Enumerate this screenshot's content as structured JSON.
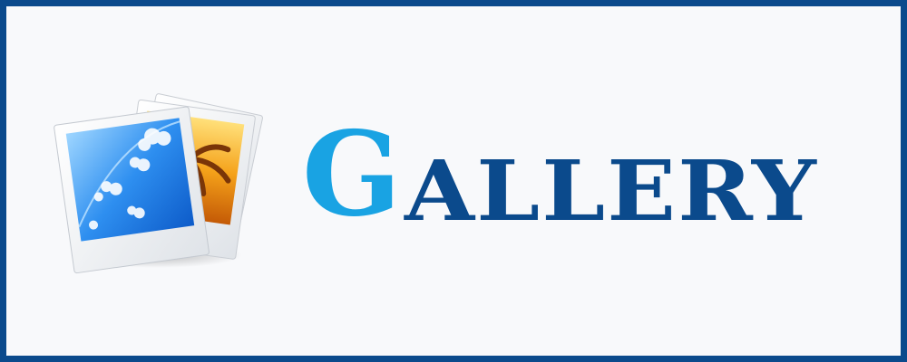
{
  "logo": {
    "icon": "photo-stack-icon",
    "title_first": "G",
    "title_rest": "ALLERY"
  },
  "colors": {
    "border": "#0b4a8c",
    "background": "#f8f9fb",
    "accent_light": "#19a3e3",
    "accent_dark": "#0b4a8c"
  }
}
